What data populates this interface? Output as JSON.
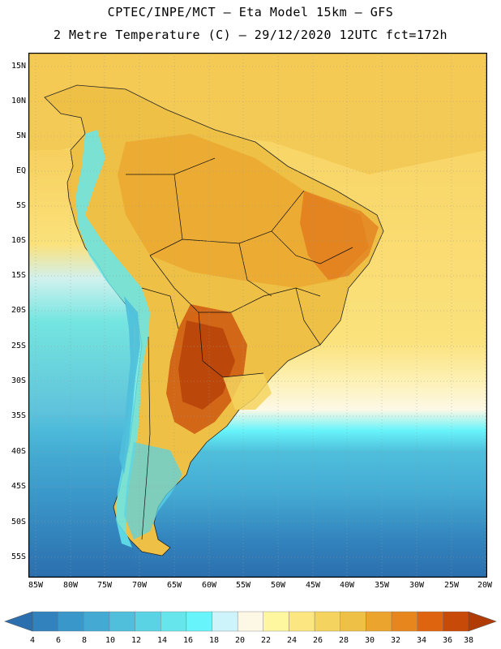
{
  "title": {
    "line1": "CPTEC/INPE/MCT –  Eta Model 15km – GFS",
    "line2": "2 Metre Temperature (C) – 29/12/2020 12UTC fct=172h"
  },
  "map": {
    "variable": "2 Metre Temperature",
    "units": "C",
    "lat_labels": [
      "15N",
      "10N",
      "5N",
      "EQ",
      "5S",
      "10S",
      "15S",
      "20S",
      "25S",
      "30S",
      "35S",
      "40S",
      "45S",
      "50S",
      "55S"
    ],
    "lon_labels": [
      "85W",
      "80W",
      "75W",
      "70W",
      "65W",
      "60W",
      "55W",
      "50W",
      "45W",
      "40W",
      "35W",
      "30W",
      "25W",
      "20W"
    ]
  },
  "colorbar": {
    "labels": [
      "4",
      "6",
      "8",
      "10",
      "12",
      "14",
      "16",
      "18",
      "20",
      "22",
      "24",
      "26",
      "28",
      "30",
      "32",
      "34",
      "36",
      "38"
    ],
    "colors": [
      "#2b6fae",
      "#3283bd",
      "#3a97c9",
      "#44aad3",
      "#4fbfdc",
      "#5ad3e4",
      "#66e6ec",
      "#67f4fa",
      "#cdf3fb",
      "#fdf8e6",
      "#fef7a0",
      "#fbe682",
      "#f4d35f",
      "#eec045",
      "#eba52e",
      "#e7861c",
      "#df6410",
      "#c84a08",
      "#b03b05"
    ]
  }
}
